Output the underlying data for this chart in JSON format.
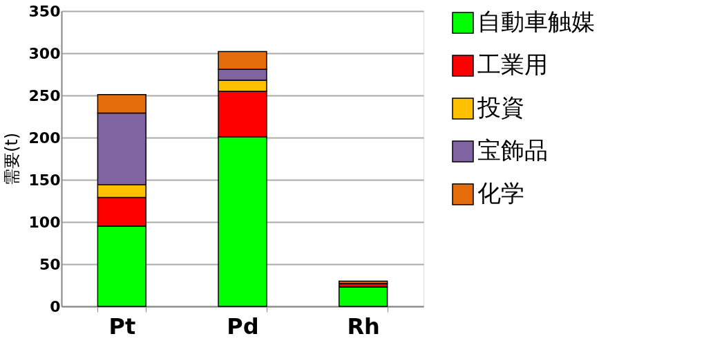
{
  "chart_data": {
    "type": "bar",
    "stacked": true,
    "ylabel": "需要(t)",
    "categories": [
      "Pt",
      "Pd",
      "Rh"
    ],
    "series": [
      {
        "name": "自動車触媒",
        "color": "#00ff00",
        "values": [
          95,
          201,
          23
        ]
      },
      {
        "name": "工業用",
        "color": "#ff0000",
        "values": [
          34,
          54,
          4
        ]
      },
      {
        "name": "投資",
        "color": "#ffc000",
        "values": [
          15,
          13,
          0
        ]
      },
      {
        "name": "宝飾品",
        "color": "#8064a2",
        "values": [
          85,
          13,
          0
        ]
      },
      {
        "name": "化学",
        "color": "#e46c0a",
        "values": [
          22,
          21,
          3
        ]
      }
    ],
    "ylim": [
      0,
      350
    ],
    "yticks": [
      0,
      50,
      100,
      150,
      200,
      250,
      300,
      350
    ],
    "grid": "y",
    "legend": "right"
  }
}
